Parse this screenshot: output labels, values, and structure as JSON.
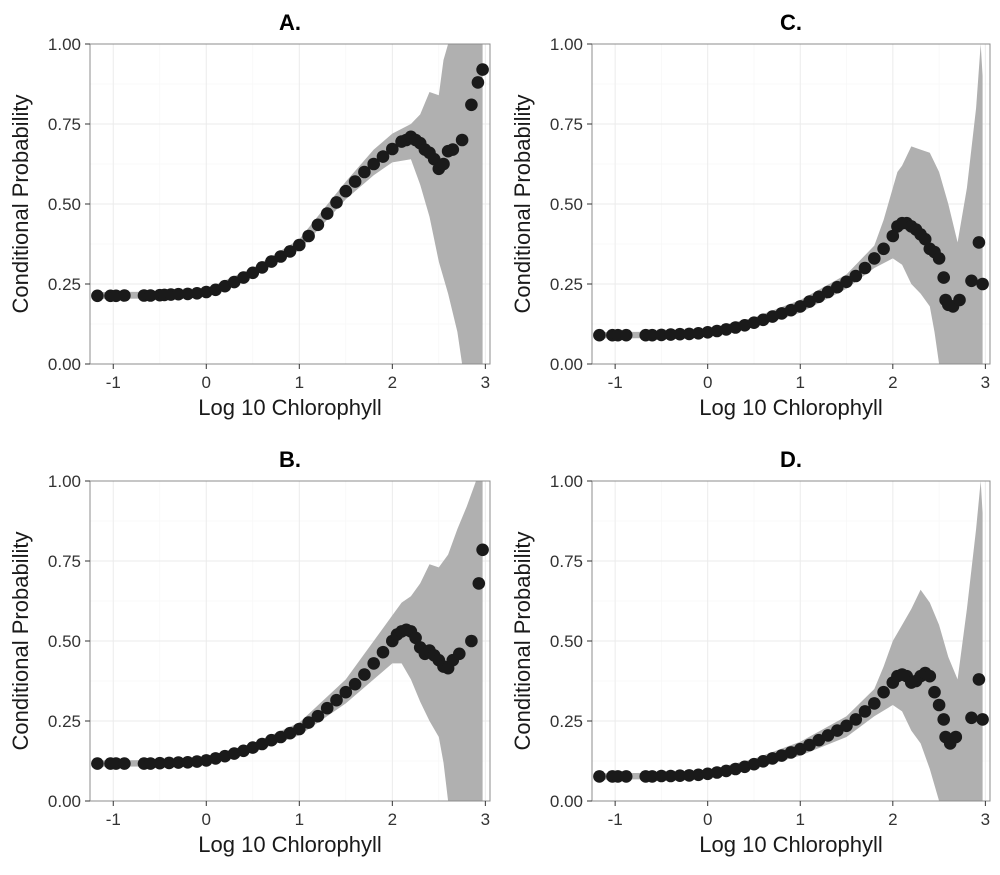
{
  "chart_data": [
    {
      "type": "scatter",
      "title": "A.",
      "xlabel": "Log 10 Chlorophyll",
      "ylabel": "Conditional Probability",
      "xlim": [
        -1.25,
        3.05
      ],
      "ylim": [
        0,
        1
      ],
      "xticks": [
        "-1",
        "0",
        "1",
        "2",
        "3"
      ],
      "yticks": [
        "0.00",
        "0.25",
        "0.50",
        "0.75",
        "1.00"
      ],
      "grid": true,
      "point_color": "#1a1a1a",
      "band_color": "#b0b0b0",
      "points": [
        [
          -1.17,
          0.213
        ],
        [
          -1.03,
          0.213
        ],
        [
          -0.97,
          0.213
        ],
        [
          -0.88,
          0.214
        ],
        [
          -0.67,
          0.214
        ],
        [
          -0.6,
          0.214
        ],
        [
          -0.5,
          0.215
        ],
        [
          -0.45,
          0.216
        ],
        [
          -0.38,
          0.217
        ],
        [
          -0.3,
          0.218
        ],
        [
          -0.2,
          0.219
        ],
        [
          -0.1,
          0.221
        ],
        [
          0.0,
          0.225
        ],
        [
          0.1,
          0.232
        ],
        [
          0.2,
          0.243
        ],
        [
          0.3,
          0.256
        ],
        [
          0.4,
          0.27
        ],
        [
          0.5,
          0.285
        ],
        [
          0.6,
          0.302
        ],
        [
          0.7,
          0.32
        ],
        [
          0.8,
          0.336
        ],
        [
          0.9,
          0.352
        ],
        [
          1.0,
          0.372
        ],
        [
          1.1,
          0.4
        ],
        [
          1.2,
          0.435
        ],
        [
          1.3,
          0.47
        ],
        [
          1.4,
          0.505
        ],
        [
          1.5,
          0.54
        ],
        [
          1.6,
          0.57
        ],
        [
          1.7,
          0.6
        ],
        [
          1.8,
          0.625
        ],
        [
          1.9,
          0.648
        ],
        [
          2.0,
          0.672
        ],
        [
          2.1,
          0.695
        ],
        [
          2.15,
          0.7
        ],
        [
          2.2,
          0.71
        ],
        [
          2.25,
          0.7
        ],
        [
          2.3,
          0.69
        ],
        [
          2.35,
          0.67
        ],
        [
          2.4,
          0.66
        ],
        [
          2.45,
          0.64
        ],
        [
          2.5,
          0.61
        ],
        [
          2.55,
          0.625
        ],
        [
          2.6,
          0.665
        ],
        [
          2.65,
          0.67
        ],
        [
          2.75,
          0.7
        ],
        [
          2.85,
          0.81
        ],
        [
          2.92,
          0.88
        ],
        [
          2.97,
          0.92
        ]
      ],
      "band_upper": [
        [
          -1.17,
          0.225
        ],
        [
          -0.5,
          0.226
        ],
        [
          0.0,
          0.235
        ],
        [
          0.5,
          0.3
        ],
        [
          1.0,
          0.39
        ],
        [
          1.5,
          0.57
        ],
        [
          1.8,
          0.67
        ],
        [
          2.0,
          0.72
        ],
        [
          2.2,
          0.75
        ],
        [
          2.3,
          0.78
        ],
        [
          2.4,
          0.85
        ],
        [
          2.5,
          0.84
        ],
        [
          2.55,
          0.95
        ],
        [
          2.6,
          1.0
        ],
        [
          2.97,
          1.0
        ]
      ],
      "band_lower": [
        [
          -1.17,
          0.203
        ],
        [
          -0.5,
          0.205
        ],
        [
          0.0,
          0.215
        ],
        [
          0.5,
          0.275
        ],
        [
          1.0,
          0.355
        ],
        [
          1.5,
          0.515
        ],
        [
          1.8,
          0.59
        ],
        [
          2.0,
          0.63
        ],
        [
          2.2,
          0.64
        ],
        [
          2.3,
          0.56
        ],
        [
          2.4,
          0.46
        ],
        [
          2.5,
          0.32
        ],
        [
          2.6,
          0.22
        ],
        [
          2.7,
          0.1
        ],
        [
          2.75,
          0.0
        ],
        [
          2.97,
          0.0
        ]
      ]
    },
    {
      "type": "scatter",
      "title": "C.",
      "xlabel": "Log 10 Chlorophyll",
      "ylabel": "Conditional Probability",
      "xlim": [
        -1.25,
        3.05
      ],
      "ylim": [
        0,
        1
      ],
      "xticks": [
        "-1",
        "0",
        "1",
        "2",
        "3"
      ],
      "yticks": [
        "0.00",
        "0.25",
        "0.50",
        "0.75",
        "1.00"
      ],
      "grid": true,
      "point_color": "#1a1a1a",
      "band_color": "#b0b0b0",
      "points": [
        [
          -1.17,
          0.09
        ],
        [
          -1.03,
          0.09
        ],
        [
          -0.97,
          0.09
        ],
        [
          -0.88,
          0.09
        ],
        [
          -0.67,
          0.09
        ],
        [
          -0.6,
          0.09
        ],
        [
          -0.5,
          0.091
        ],
        [
          -0.4,
          0.092
        ],
        [
          -0.3,
          0.093
        ],
        [
          -0.2,
          0.094
        ],
        [
          -0.1,
          0.096
        ],
        [
          0.0,
          0.099
        ],
        [
          0.1,
          0.103
        ],
        [
          0.2,
          0.108
        ],
        [
          0.3,
          0.114
        ],
        [
          0.4,
          0.121
        ],
        [
          0.5,
          0.129
        ],
        [
          0.6,
          0.138
        ],
        [
          0.7,
          0.148
        ],
        [
          0.8,
          0.158
        ],
        [
          0.9,
          0.168
        ],
        [
          1.0,
          0.18
        ],
        [
          1.1,
          0.195
        ],
        [
          1.2,
          0.21
        ],
        [
          1.3,
          0.225
        ],
        [
          1.4,
          0.24
        ],
        [
          1.5,
          0.257
        ],
        [
          1.6,
          0.275
        ],
        [
          1.7,
          0.3
        ],
        [
          1.8,
          0.33
        ],
        [
          1.9,
          0.36
        ],
        [
          2.0,
          0.4
        ],
        [
          2.05,
          0.43
        ],
        [
          2.1,
          0.44
        ],
        [
          2.15,
          0.44
        ],
        [
          2.2,
          0.43
        ],
        [
          2.25,
          0.42
        ],
        [
          2.3,
          0.405
        ],
        [
          2.35,
          0.39
        ],
        [
          2.4,
          0.36
        ],
        [
          2.45,
          0.35
        ],
        [
          2.5,
          0.33
        ],
        [
          2.55,
          0.27
        ],
        [
          2.57,
          0.2
        ],
        [
          2.6,
          0.185
        ],
        [
          2.65,
          0.18
        ],
        [
          2.72,
          0.2
        ],
        [
          2.85,
          0.26
        ],
        [
          2.93,
          0.38
        ],
        [
          2.97,
          0.25
        ]
      ],
      "band_upper": [
        [
          -1.17,
          0.1
        ],
        [
          -0.5,
          0.101
        ],
        [
          0.0,
          0.11
        ],
        [
          0.5,
          0.145
        ],
        [
          1.0,
          0.2
        ],
        [
          1.5,
          0.28
        ],
        [
          1.8,
          0.37
        ],
        [
          1.9,
          0.45
        ],
        [
          2.0,
          0.55
        ],
        [
          2.05,
          0.6
        ],
        [
          2.1,
          0.62
        ],
        [
          2.2,
          0.68
        ],
        [
          2.3,
          0.67
        ],
        [
          2.4,
          0.66
        ],
        [
          2.5,
          0.6
        ],
        [
          2.6,
          0.5
        ],
        [
          2.7,
          0.38
        ],
        [
          2.8,
          0.55
        ],
        [
          2.9,
          0.8
        ],
        [
          2.95,
          1.0
        ],
        [
          2.97,
          0.9
        ]
      ],
      "band_lower": [
        [
          -1.17,
          0.08
        ],
        [
          -0.5,
          0.081
        ],
        [
          0.0,
          0.089
        ],
        [
          0.5,
          0.115
        ],
        [
          1.0,
          0.16
        ],
        [
          1.5,
          0.235
        ],
        [
          1.8,
          0.3
        ],
        [
          2.0,
          0.33
        ],
        [
          2.1,
          0.31
        ],
        [
          2.2,
          0.25
        ],
        [
          2.3,
          0.22
        ],
        [
          2.4,
          0.18
        ],
        [
          2.45,
          0.1
        ],
        [
          2.5,
          0.0
        ],
        [
          2.97,
          0.0
        ]
      ]
    },
    {
      "type": "scatter",
      "title": "B.",
      "xlabel": "Log 10 Chlorophyll",
      "ylabel": "Conditional Probability",
      "xlim": [
        -1.25,
        3.05
      ],
      "ylim": [
        0,
        1
      ],
      "xticks": [
        "-1",
        "0",
        "1",
        "2",
        "3"
      ],
      "yticks": [
        "0.00",
        "0.25",
        "0.50",
        "0.75",
        "1.00"
      ],
      "grid": true,
      "point_color": "#1a1a1a",
      "band_color": "#b0b0b0",
      "points": [
        [
          -1.17,
          0.117
        ],
        [
          -1.03,
          0.117
        ],
        [
          -0.97,
          0.117
        ],
        [
          -0.88,
          0.117
        ],
        [
          -0.67,
          0.117
        ],
        [
          -0.6,
          0.117
        ],
        [
          -0.5,
          0.118
        ],
        [
          -0.4,
          0.119
        ],
        [
          -0.3,
          0.12
        ],
        [
          -0.2,
          0.121
        ],
        [
          -0.1,
          0.123
        ],
        [
          0.0,
          0.127
        ],
        [
          0.1,
          0.133
        ],
        [
          0.2,
          0.14
        ],
        [
          0.3,
          0.148
        ],
        [
          0.4,
          0.157
        ],
        [
          0.5,
          0.167
        ],
        [
          0.6,
          0.178
        ],
        [
          0.7,
          0.19
        ],
        [
          0.8,
          0.2
        ],
        [
          0.9,
          0.212
        ],
        [
          1.0,
          0.225
        ],
        [
          1.1,
          0.245
        ],
        [
          1.2,
          0.265
        ],
        [
          1.3,
          0.29
        ],
        [
          1.4,
          0.315
        ],
        [
          1.5,
          0.34
        ],
        [
          1.6,
          0.365
        ],
        [
          1.7,
          0.395
        ],
        [
          1.8,
          0.43
        ],
        [
          1.9,
          0.465
        ],
        [
          2.0,
          0.5
        ],
        [
          2.05,
          0.52
        ],
        [
          2.1,
          0.53
        ],
        [
          2.15,
          0.535
        ],
        [
          2.2,
          0.53
        ],
        [
          2.25,
          0.51
        ],
        [
          2.3,
          0.48
        ],
        [
          2.35,
          0.46
        ],
        [
          2.4,
          0.47
        ],
        [
          2.45,
          0.455
        ],
        [
          2.5,
          0.44
        ],
        [
          2.55,
          0.42
        ],
        [
          2.6,
          0.415
        ],
        [
          2.65,
          0.44
        ],
        [
          2.72,
          0.46
        ],
        [
          2.85,
          0.5
        ],
        [
          2.93,
          0.68
        ],
        [
          2.97,
          0.785
        ]
      ],
      "band_upper": [
        [
          -1.17,
          0.127
        ],
        [
          -0.5,
          0.128
        ],
        [
          0.0,
          0.138
        ],
        [
          0.5,
          0.18
        ],
        [
          1.0,
          0.245
        ],
        [
          1.5,
          0.38
        ],
        [
          1.8,
          0.5
        ],
        [
          2.0,
          0.58
        ],
        [
          2.1,
          0.62
        ],
        [
          2.2,
          0.64
        ],
        [
          2.3,
          0.68
        ],
        [
          2.4,
          0.74
        ],
        [
          2.5,
          0.73
        ],
        [
          2.6,
          0.77
        ],
        [
          2.7,
          0.85
        ],
        [
          2.8,
          0.92
        ],
        [
          2.9,
          1.0
        ],
        [
          2.97,
          1.0
        ]
      ],
      "band_lower": [
        [
          -1.17,
          0.107
        ],
        [
          -0.5,
          0.108
        ],
        [
          0.0,
          0.117
        ],
        [
          0.5,
          0.153
        ],
        [
          1.0,
          0.205
        ],
        [
          1.5,
          0.305
        ],
        [
          1.8,
          0.38
        ],
        [
          2.0,
          0.43
        ],
        [
          2.1,
          0.43
        ],
        [
          2.2,
          0.38
        ],
        [
          2.3,
          0.31
        ],
        [
          2.4,
          0.25
        ],
        [
          2.5,
          0.2
        ],
        [
          2.55,
          0.12
        ],
        [
          2.6,
          0.0
        ],
        [
          2.97,
          0.0
        ]
      ]
    },
    {
      "type": "scatter",
      "title": "D.",
      "xlabel": "Log 10 Chlorophyll",
      "ylabel": "Conditional Probability",
      "xlim": [
        -1.25,
        3.05
      ],
      "ylim": [
        0,
        1
      ],
      "xticks": [
        "-1",
        "0",
        "1",
        "2",
        "3"
      ],
      "yticks": [
        "0.00",
        "0.25",
        "0.50",
        "0.75",
        "1.00"
      ],
      "grid": true,
      "point_color": "#1a1a1a",
      "band_color": "#b0b0b0",
      "points": [
        [
          -1.17,
          0.077
        ],
        [
          -1.03,
          0.077
        ],
        [
          -0.97,
          0.077
        ],
        [
          -0.88,
          0.077
        ],
        [
          -0.67,
          0.077
        ],
        [
          -0.6,
          0.077
        ],
        [
          -0.5,
          0.078
        ],
        [
          -0.4,
          0.078
        ],
        [
          -0.3,
          0.079
        ],
        [
          -0.2,
          0.08
        ],
        [
          -0.1,
          0.082
        ],
        [
          0.0,
          0.085
        ],
        [
          0.1,
          0.089
        ],
        [
          0.2,
          0.094
        ],
        [
          0.3,
          0.1
        ],
        [
          0.4,
          0.107
        ],
        [
          0.5,
          0.115
        ],
        [
          0.6,
          0.124
        ],
        [
          0.7,
          0.133
        ],
        [
          0.8,
          0.142
        ],
        [
          0.9,
          0.152
        ],
        [
          1.0,
          0.162
        ],
        [
          1.1,
          0.175
        ],
        [
          1.2,
          0.19
        ],
        [
          1.3,
          0.205
        ],
        [
          1.4,
          0.22
        ],
        [
          1.5,
          0.235
        ],
        [
          1.6,
          0.255
        ],
        [
          1.7,
          0.28
        ],
        [
          1.8,
          0.305
        ],
        [
          1.9,
          0.34
        ],
        [
          2.0,
          0.37
        ],
        [
          2.05,
          0.39
        ],
        [
          2.1,
          0.395
        ],
        [
          2.15,
          0.39
        ],
        [
          2.2,
          0.37
        ],
        [
          2.25,
          0.375
        ],
        [
          2.3,
          0.39
        ],
        [
          2.35,
          0.4
        ],
        [
          2.4,
          0.39
        ],
        [
          2.45,
          0.34
        ],
        [
          2.5,
          0.3
        ],
        [
          2.55,
          0.255
        ],
        [
          2.57,
          0.2
        ],
        [
          2.62,
          0.18
        ],
        [
          2.68,
          0.2
        ],
        [
          2.85,
          0.26
        ],
        [
          2.93,
          0.38
        ],
        [
          2.97,
          0.255
        ]
      ],
      "band_upper": [
        [
          -1.17,
          0.087
        ],
        [
          -0.5,
          0.088
        ],
        [
          0.0,
          0.096
        ],
        [
          0.5,
          0.132
        ],
        [
          1.0,
          0.185
        ],
        [
          1.5,
          0.265
        ],
        [
          1.8,
          0.35
        ],
        [
          1.9,
          0.42
        ],
        [
          2.0,
          0.5
        ],
        [
          2.1,
          0.55
        ],
        [
          2.2,
          0.6
        ],
        [
          2.3,
          0.66
        ],
        [
          2.4,
          0.62
        ],
        [
          2.5,
          0.55
        ],
        [
          2.6,
          0.45
        ],
        [
          2.7,
          0.38
        ],
        [
          2.8,
          0.6
        ],
        [
          2.9,
          0.85
        ],
        [
          2.95,
          1.0
        ],
        [
          2.97,
          0.9
        ]
      ],
      "band_lower": [
        [
          -1.17,
          0.067
        ],
        [
          -0.5,
          0.068
        ],
        [
          0.0,
          0.075
        ],
        [
          0.5,
          0.1
        ],
        [
          1.0,
          0.142
        ],
        [
          1.5,
          0.2
        ],
        [
          1.8,
          0.265
        ],
        [
          2.0,
          0.3
        ],
        [
          2.1,
          0.28
        ],
        [
          2.2,
          0.22
        ],
        [
          2.3,
          0.18
        ],
        [
          2.4,
          0.1
        ],
        [
          2.5,
          0.0
        ],
        [
          2.97,
          0.0
        ]
      ]
    }
  ]
}
